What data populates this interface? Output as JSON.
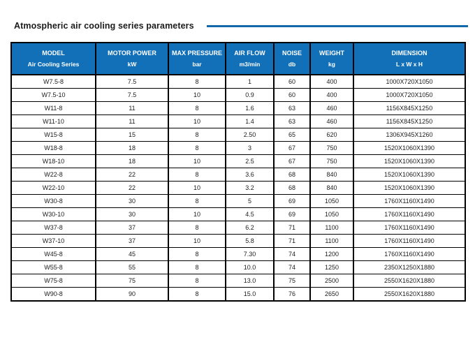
{
  "page": {
    "title": "Atmospheric air cooling series parameters"
  },
  "table": {
    "columns": [
      {
        "label": "MODEL",
        "sub": "Air Cooling Series"
      },
      {
        "label": "MOTOR POWER",
        "sub": "kW"
      },
      {
        "label": "MAX PRESSURE",
        "sub": "bar"
      },
      {
        "label": "AIR FLOW",
        "sub": "m3/min"
      },
      {
        "label": "NOISE",
        "sub": "db"
      },
      {
        "label": "WEIGHT",
        "sub": "kg"
      },
      {
        "label": "DIMENSION",
        "sub": "L x W x H"
      }
    ],
    "rows": [
      [
        "W7.5-8",
        "7.5",
        "8",
        "1",
        "60",
        "400",
        "1000X720X1050"
      ],
      [
        "W7.5-10",
        "7.5",
        "10",
        "0.9",
        "60",
        "400",
        "1000X720X1050"
      ],
      [
        "W11-8",
        "11",
        "8",
        "1.6",
        "63",
        "460",
        "1156X845X1250"
      ],
      [
        "W11-10",
        "11",
        "10",
        "1.4",
        "63",
        "460",
        "1156X845X1250"
      ],
      [
        "W15-8",
        "15",
        "8",
        "2.50",
        "65",
        "620",
        "1306X945X1260"
      ],
      [
        "W18-8",
        "18",
        "8",
        "3",
        "67",
        "750",
        "1520X1060X1390"
      ],
      [
        "W18-10",
        "18",
        "10",
        "2.5",
        "67",
        "750",
        "1520X1060X1390"
      ],
      [
        "W22-8",
        "22",
        "8",
        "3.6",
        "68",
        "840",
        "1520X1060X1390"
      ],
      [
        "W22-10",
        "22",
        "10",
        "3.2",
        "68",
        "840",
        "1520X1060X1390"
      ],
      [
        "W30-8",
        "30",
        "8",
        "5",
        "69",
        "1050",
        "1760X1160X1490"
      ],
      [
        "W30-10",
        "30",
        "10",
        "4.5",
        "69",
        "1050",
        "1760X1160X1490"
      ],
      [
        "W37-8",
        "37",
        "8",
        "6.2",
        "71",
        "1100",
        "1760X1160X1490"
      ],
      [
        "W37-10",
        "37",
        "10",
        "5.8",
        "71",
        "1100",
        "1760X1160X1490"
      ],
      [
        "W45-8",
        "45",
        "8",
        "7.30",
        "74",
        "1200",
        "1760X1160X1490"
      ],
      [
        "W55-8",
        "55",
        "8",
        "10.0",
        "74",
        "1250",
        "2350X1250X1880"
      ],
      [
        "W75-8",
        "75",
        "8",
        "13.0",
        "75",
        "2500",
        "2550X1620X1880"
      ],
      [
        "W90-8",
        "90",
        "8",
        "15.0",
        "76",
        "2650",
        "2550X1620X1880"
      ]
    ]
  },
  "colors": {
    "header_bg": "#1270b9",
    "header_text": "#ffffff",
    "title_rule": "#1268a8",
    "border": "#000000"
  }
}
